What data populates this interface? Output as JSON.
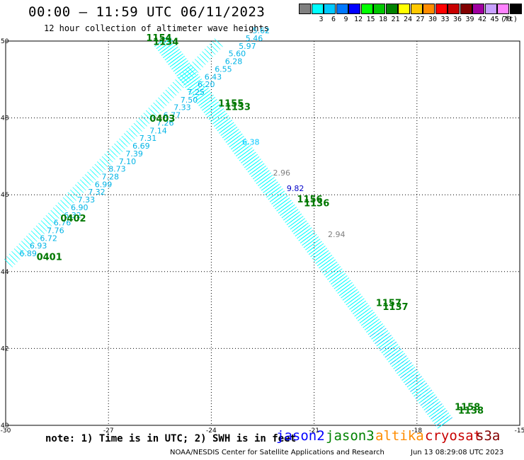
{
  "header": {
    "title": "00:00 – 11:59 UTC 06/11/2023",
    "subtitle": "12 hour collection of altimeter wave heights"
  },
  "legend": {
    "unit": "(ft)",
    "bins": [
      {
        "label": "",
        "color": "#808080"
      },
      {
        "label": "3",
        "color": "#00ffff"
      },
      {
        "label": "6",
        "color": "#00c8ff"
      },
      {
        "label": "9",
        "color": "#0078ff"
      },
      {
        "label": "12",
        "color": "#0000ff"
      },
      {
        "label": "15",
        "color": "#00ff00"
      },
      {
        "label": "18",
        "color": "#00c800"
      },
      {
        "label": "21",
        "color": "#008200"
      },
      {
        "label": "24",
        "color": "#ffff00"
      },
      {
        "label": "27",
        "color": "#ffc800"
      },
      {
        "label": "30",
        "color": "#ff8c00"
      },
      {
        "label": "33",
        "color": "#ff0000"
      },
      {
        "label": "36",
        "color": "#c80000"
      },
      {
        "label": "39",
        "color": "#820000"
      },
      {
        "label": "42",
        "color": "#a000a0"
      },
      {
        "label": "45",
        "color": "#c8a0ff"
      },
      {
        "label": "70",
        "color": "#ff82ff"
      },
      {
        "label": "",
        "color": "#000000"
      }
    ]
  },
  "map": {
    "lon_range": [
      -30,
      -15
    ],
    "lat_range": [
      40,
      50
    ],
    "lon_ticks": [
      -30,
      -27,
      -24,
      -21,
      -18,
      -15
    ],
    "lat_ticks": [
      40,
      42,
      44,
      46,
      48,
      50
    ],
    "colors": {
      "cyan": "#00ffff",
      "lightblue": "#00c8ff",
      "label_cyan": "#00b4e6",
      "green": "#007800",
      "gray": "#808080",
      "blue": "#0000c8"
    },
    "track_a": [
      [
        -25.5,
        50.0
      ],
      [
        -17.2,
        40.0
      ]
    ],
    "track_b": [
      [
        -23.8,
        50.0
      ],
      [
        -30.0,
        44.2
      ]
    ],
    "swh_labels_west": [
      {
        "lon": -29.6,
        "lat": 44.4,
        "text": "6.89"
      },
      {
        "lon": -29.3,
        "lat": 44.6,
        "text": "6.93"
      },
      {
        "lon": -29.0,
        "lat": 44.8,
        "text": "6.72"
      },
      {
        "lon": -28.8,
        "lat": 45.0,
        "text": "7.76"
      },
      {
        "lon": -28.6,
        "lat": 45.2,
        "text": "6.76"
      },
      {
        "lon": -28.3,
        "lat": 45.4,
        "text": "6.32"
      },
      {
        "lon": -28.1,
        "lat": 45.6,
        "text": "6.90"
      },
      {
        "lon": -27.9,
        "lat": 45.8,
        "text": "7.33"
      },
      {
        "lon": -27.6,
        "lat": 46.0,
        "text": "7.32"
      },
      {
        "lon": -27.4,
        "lat": 46.2,
        "text": "6.99"
      },
      {
        "lon": -27.2,
        "lat": 46.4,
        "text": "7.28"
      },
      {
        "lon": -27.0,
        "lat": 46.6,
        "text": "8.73"
      },
      {
        "lon": -26.7,
        "lat": 46.8,
        "text": "7.10"
      },
      {
        "lon": -26.5,
        "lat": 47.0,
        "text": "7.39"
      },
      {
        "lon": -26.3,
        "lat": 47.2,
        "text": "6.69"
      },
      {
        "lon": -26.1,
        "lat": 47.4,
        "text": "7.31"
      },
      {
        "lon": -25.8,
        "lat": 47.6,
        "text": "7.14"
      },
      {
        "lon": -25.6,
        "lat": 47.8,
        "text": "7.26"
      },
      {
        "lon": -25.4,
        "lat": 48.0,
        "text": "6.77"
      },
      {
        "lon": -25.1,
        "lat": 48.2,
        "text": "7.33"
      },
      {
        "lon": -24.9,
        "lat": 48.4,
        "text": "7.50"
      },
      {
        "lon": -24.7,
        "lat": 48.6,
        "text": "7.25"
      },
      {
        "lon": -24.4,
        "lat": 48.8,
        "text": "6.20"
      },
      {
        "lon": -24.2,
        "lat": 49.0,
        "text": "6.43"
      },
      {
        "lon": -23.9,
        "lat": 49.2,
        "text": "6.55"
      },
      {
        "lon": -23.6,
        "lat": 49.4,
        "text": "6.28"
      },
      {
        "lon": -23.5,
        "lat": 49.6,
        "text": "5.60"
      },
      {
        "lon": -23.2,
        "lat": 49.8,
        "text": "5.97"
      },
      {
        "lon": -23.0,
        "lat": 50.0,
        "text": "5.46"
      },
      {
        "lon": -22.8,
        "lat": 50.2,
        "text": "5.62"
      }
    ],
    "pass_labels": [
      {
        "lon": -23.8,
        "lat": 48.3,
        "text": "1155"
      },
      {
        "lon": -23.6,
        "lat": 48.2,
        "text": "1133"
      },
      {
        "lon": -21.5,
        "lat": 45.8,
        "text": "1156"
      },
      {
        "lon": -21.3,
        "lat": 45.7,
        "text": "1136"
      },
      {
        "lon": -19.2,
        "lat": 43.1,
        "text": "1157"
      },
      {
        "lon": -19.0,
        "lat": 43.0,
        "text": "1137"
      },
      {
        "lon": -16.9,
        "lat": 40.4,
        "text": "1158"
      },
      {
        "lon": -16.8,
        "lat": 40.3,
        "text": "1138"
      },
      {
        "lon": -25.9,
        "lat": 50.0,
        "text": "1154"
      },
      {
        "lon": -25.7,
        "lat": 49.9,
        "text": "1134"
      },
      {
        "lon": -25.8,
        "lat": 47.9,
        "text": "0403"
      },
      {
        "lon": -28.4,
        "lat": 45.3,
        "text": "0402"
      },
      {
        "lon": -29.1,
        "lat": 44.3,
        "text": "0401"
      }
    ],
    "swh_labels_other": [
      {
        "lon": -22.2,
        "lat": 46.5,
        "text": "2.96",
        "color": "gray"
      },
      {
        "lon": -21.8,
        "lat": 46.1,
        "text": "9.82",
        "color": "blue"
      },
      {
        "lon": -20.6,
        "lat": 44.9,
        "text": "2.94",
        "color": "gray"
      },
      {
        "lon": -23.1,
        "lat": 47.3,
        "text": "6.38",
        "color": "lightblue"
      }
    ]
  },
  "footer": {
    "note": "note: 1) Time is in UTC; 2) SWH is in feet",
    "satellites": [
      {
        "name": "jason2",
        "color": "#0000ff"
      },
      {
        "name": "jason3",
        "color": "#008200"
      },
      {
        "name": "altika",
        "color": "#ff8c00"
      },
      {
        "name": "cryosat",
        "color": "#c80000"
      },
      {
        "name": "s3a",
        "color": "#820000"
      }
    ],
    "credit": "NOAA/NESDIS Center for Satellite Applications and Research",
    "timestamp": "Jun 13 08:29:08 UTC 2023"
  }
}
